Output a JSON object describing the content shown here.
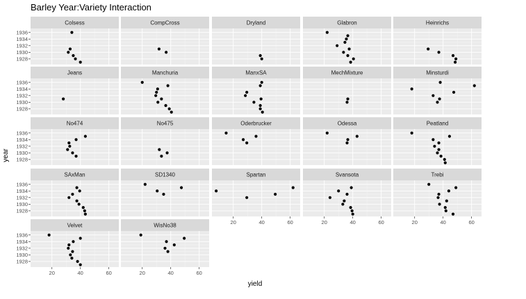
{
  "chart_data": {
    "type": "scatter",
    "title": "Barley Year:Variety Interaction",
    "xlabel": "yield",
    "ylabel": "year",
    "xlim": [
      5,
      67
    ],
    "ylim": [
      1926.3,
      1937.2
    ],
    "x_ticks": [
      20,
      40,
      60
    ],
    "y_ticks": [
      1928,
      1930,
      1932,
      1934,
      1936
    ],
    "facet_columns": 5,
    "grid": true,
    "colors": {
      "panel_bg": "#ebebeb",
      "strip_bg": "#d9d9d9",
      "grid_major": "#ffffff",
      "point": "#000000"
    },
    "panels": [
      {
        "label": "Colsess",
        "points": [
          [
            34.0,
            1936
          ],
          [
            32.8,
            1931
          ],
          [
            31.5,
            1930
          ],
          [
            35.0,
            1929
          ],
          [
            36.5,
            1928
          ],
          [
            40.0,
            1927
          ]
        ]
      },
      {
        "label": "CompCross",
        "points": [
          [
            31.8,
            1931
          ],
          [
            36.8,
            1930
          ]
        ]
      },
      {
        "label": "Dryland",
        "points": [
          [
            39.0,
            1929
          ],
          [
            40.0,
            1928
          ]
        ]
      },
      {
        "label": "Glabron",
        "points": [
          [
            22.0,
            1936
          ],
          [
            36.5,
            1935
          ],
          [
            35.5,
            1934
          ],
          [
            34.5,
            1933
          ],
          [
            29.0,
            1932
          ],
          [
            37.5,
            1931
          ],
          [
            33.5,
            1930
          ],
          [
            36.5,
            1929
          ],
          [
            40.5,
            1928
          ],
          [
            38.5,
            1927
          ]
        ]
      },
      {
        "label": "Heinrichs",
        "points": [
          [
            29.5,
            1931
          ],
          [
            37.0,
            1930
          ],
          [
            47.0,
            1929
          ],
          [
            49.0,
            1928
          ],
          [
            48.5,
            1927
          ]
        ]
      },
      {
        "label": "Jeans",
        "points": [
          [
            28.0,
            1931
          ]
        ]
      },
      {
        "label": "Manchuria",
        "points": [
          [
            20.0,
            1936
          ],
          [
            38.0,
            1935
          ],
          [
            30.8,
            1934
          ],
          [
            30.0,
            1933
          ],
          [
            29.5,
            1932
          ],
          [
            33.5,
            1931
          ],
          [
            31.0,
            1930
          ],
          [
            36.5,
            1929
          ],
          [
            39.0,
            1928
          ],
          [
            40.5,
            1927
          ]
        ]
      },
      {
        "label": "ManxSA",
        "points": [
          [
            40.0,
            1936
          ],
          [
            39.0,
            1935
          ],
          [
            29.5,
            1933
          ],
          [
            28.5,
            1932
          ],
          [
            39.5,
            1931
          ],
          [
            34.5,
            1930
          ],
          [
            39.0,
            1929
          ],
          [
            39.0,
            1928
          ],
          [
            40.5,
            1927
          ]
        ]
      },
      {
        "label": "MechMixture",
        "points": [
          [
            36.5,
            1931
          ],
          [
            36.0,
            1930
          ]
        ]
      },
      {
        "label": "Minsturdi",
        "points": [
          [
            38.0,
            1936
          ],
          [
            62.0,
            1935
          ],
          [
            18.0,
            1934
          ],
          [
            47.5,
            1933
          ],
          [
            33.0,
            1932
          ],
          [
            37.5,
            1931
          ],
          [
            36.0,
            1930
          ]
        ]
      },
      {
        "label": "No474",
        "points": [
          [
            43.5,
            1935
          ],
          [
            37.0,
            1934
          ],
          [
            32.0,
            1933
          ],
          [
            32.5,
            1932
          ],
          [
            31.0,
            1931
          ],
          [
            34.5,
            1930
          ],
          [
            37.0,
            1929
          ]
        ]
      },
      {
        "label": "No475",
        "points": [
          [
            32.0,
            1931
          ],
          [
            37.5,
            1930
          ],
          [
            33.5,
            1929
          ]
        ]
      },
      {
        "label": "Oderbrucker",
        "points": [
          [
            15.0,
            1936
          ],
          [
            36.0,
            1935
          ],
          [
            27.0,
            1934
          ],
          [
            29.5,
            1933
          ]
        ]
      },
      {
        "label": "Odessa",
        "points": [
          [
            22.0,
            1936
          ],
          [
            43.0,
            1935
          ],
          [
            36.5,
            1934
          ],
          [
            36.0,
            1933
          ]
        ]
      },
      {
        "label": "Peatland",
        "points": [
          [
            18.0,
            1936
          ],
          [
            44.5,
            1935
          ],
          [
            33.0,
            1934
          ],
          [
            37.0,
            1933
          ],
          [
            34.0,
            1932
          ],
          [
            37.0,
            1931
          ],
          [
            36.0,
            1930
          ],
          [
            38.5,
            1929
          ],
          [
            41.0,
            1928
          ],
          [
            41.5,
            1927
          ]
        ]
      },
      {
        "label": "SAxMan",
        "points": [
          [
            37.5,
            1935
          ],
          [
            39.5,
            1934
          ],
          [
            34.5,
            1933
          ],
          [
            32.0,
            1932
          ],
          [
            37.5,
            1931
          ],
          [
            39.0,
            1930
          ],
          [
            42.0,
            1929
          ],
          [
            43.0,
            1928
          ],
          [
            43.5,
            1927
          ]
        ]
      },
      {
        "label": "SD1340",
        "points": [
          [
            22.0,
            1936
          ],
          [
            47.5,
            1935
          ],
          [
            30.5,
            1934
          ],
          [
            35.0,
            1933
          ]
        ]
      },
      {
        "label": "Spartan",
        "points": [
          [
            62.0,
            1935
          ],
          [
            8.0,
            1934
          ],
          [
            49.5,
            1933
          ],
          [
            29.5,
            1932
          ]
        ]
      },
      {
        "label": "Svansota",
        "points": [
          [
            39.0,
            1935
          ],
          [
            30.0,
            1934
          ],
          [
            36.0,
            1933
          ],
          [
            24.0,
            1932
          ],
          [
            34.0,
            1931
          ],
          [
            33.0,
            1930
          ],
          [
            38.5,
            1929
          ],
          [
            39.5,
            1928
          ],
          [
            40.0,
            1927
          ]
        ]
      },
      {
        "label": "Trebi",
        "points": [
          [
            30.0,
            1936
          ],
          [
            49.0,
            1935
          ],
          [
            44.0,
            1934
          ],
          [
            37.0,
            1933
          ],
          [
            36.5,
            1932
          ],
          [
            42.5,
            1931
          ],
          [
            37.5,
            1930
          ],
          [
            41.5,
            1929
          ],
          [
            42.0,
            1928
          ],
          [
            47.0,
            1927
          ]
        ]
      },
      {
        "label": "Velvet",
        "points": [
          [
            18.0,
            1936
          ],
          [
            40.0,
            1935
          ],
          [
            35.0,
            1934
          ],
          [
            32.0,
            1933
          ],
          [
            31.5,
            1932
          ],
          [
            34.5,
            1931
          ],
          [
            33.0,
            1930
          ],
          [
            34.0,
            1929
          ],
          [
            38.0,
            1928
          ],
          [
            40.0,
            1927
          ]
        ]
      },
      {
        "label": "WisNo38",
        "points": [
          [
            19.0,
            1936
          ],
          [
            49.5,
            1935
          ],
          [
            37.0,
            1934
          ],
          [
            42.5,
            1933
          ],
          [
            36.0,
            1932
          ],
          [
            38.0,
            1931
          ]
        ]
      }
    ]
  }
}
